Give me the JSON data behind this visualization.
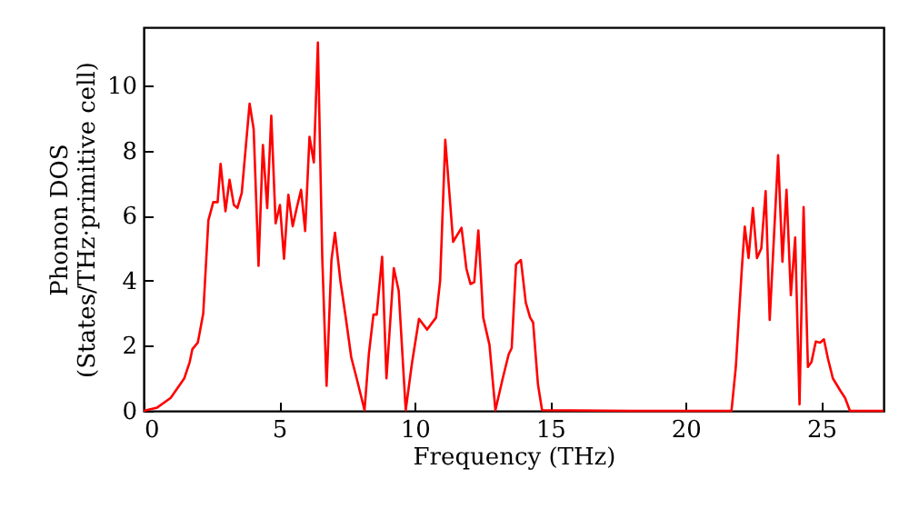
{
  "chart_data": {
    "type": "line",
    "xlabel": "Frequency (THz)",
    "ylabel": "Phonon DOS\n(States/THz·primitive cell)",
    "xlim": [
      0,
      27.3
    ],
    "ylim": [
      0,
      11.8
    ],
    "xticks": [
      0,
      5,
      10,
      15,
      20,
      25
    ],
    "yticks": [
      0,
      2,
      4,
      6,
      8,
      10
    ],
    "grid": false,
    "marker": "none",
    "line_style": "solid",
    "series": [
      {
        "color": "#ff0000",
        "x": [
          0,
          0.5,
          1,
          1.5,
          1.7,
          1.8,
          2,
          2.2,
          2.39,
          2.57,
          2.73,
          2.84,
          3.02,
          3.17,
          3.33,
          3.46,
          3.62,
          3.91,
          4.06,
          4.24,
          4.4,
          4.56,
          4.71,
          4.87,
          5.03,
          5.18,
          5.34,
          5.5,
          5.65,
          5.81,
          5.96,
          6.12,
          6.28,
          6.43,
          6.59,
          6.75,
          6.93,
          7.06,
          7.26,
          7.46,
          7.66,
          7.86,
          8.15,
          8.31,
          8.48,
          8.6,
          8.8,
          8.96,
          9.23,
          9.41,
          9.67,
          9.9,
          10.16,
          10.46,
          10.79,
          10.94,
          11.13,
          11.42,
          11.73,
          11.91,
          12.06,
          12.2,
          12.35,
          12.53,
          12.76,
          12.98,
          13.25,
          13.47,
          13.58,
          13.74,
          13.92,
          14.1,
          14.26,
          14.37,
          14.55,
          14.7,
          18,
          21.69,
          21.85,
          22.07,
          22.18,
          22.32,
          22.48,
          22.63,
          22.79,
          22.95,
          23.1,
          23.41,
          23.57,
          23.72,
          23.88,
          24.04,
          24.2,
          24.35,
          24.51,
          24.64,
          24.8,
          24.96,
          25.1,
          25.25,
          25.43,
          25.72,
          25.88,
          26.06,
          27.3
        ],
        "values": [
          0,
          0.1,
          0.4,
          1,
          1.5,
          1.9,
          2.1,
          3,
          5.86,
          6.42,
          6.42,
          7.6,
          6.14,
          7.11,
          6.33,
          6.24,
          6.7,
          9.45,
          8.67,
          4.46,
          8.18,
          6.24,
          9.08,
          5.77,
          6.33,
          4.68,
          6.65,
          5.68,
          6.24,
          6.8,
          5.53,
          8.43,
          7.64,
          11.33,
          4.74,
          0.77,
          4.64,
          5.48,
          4,
          2.86,
          1.65,
          1,
          0.02,
          1.74,
          2.96,
          2.96,
          4.74,
          1,
          4.39,
          3.7,
          0.02,
          1.46,
          2.83,
          2.5,
          2.87,
          4,
          8.34,
          5.2,
          5.63,
          4.37,
          3.9,
          3.96,
          5.55,
          2.87,
          2.03,
          0.02,
          1,
          1.74,
          1.93,
          4.5,
          4.64,
          3.33,
          2.87,
          2.72,
          0.81,
          0.02,
          0,
          0,
          1.35,
          4.36,
          5.67,
          4.7,
          6.24,
          4.7,
          5,
          6.76,
          2.8,
          7.86,
          4.59,
          6.8,
          3.56,
          5.33,
          0.2,
          6.27,
          1.35,
          1.5,
          2.13,
          2.1,
          2.2,
          1.6,
          1,
          0.6,
          0.4,
          0,
          0
        ]
      }
    ]
  }
}
